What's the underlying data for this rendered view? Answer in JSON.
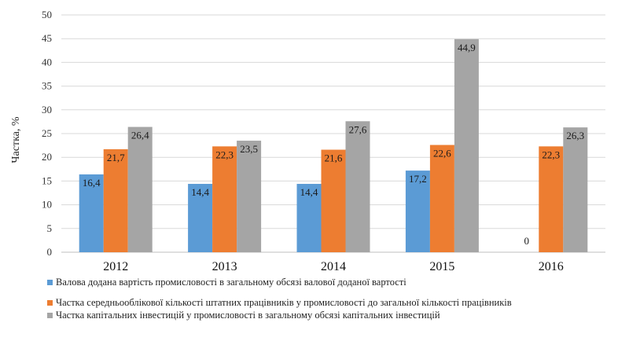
{
  "chart_data": {
    "type": "bar",
    "categories": [
      "2012",
      "2013",
      "2014",
      "2015",
      "2016"
    ],
    "series": [
      {
        "name": "Валова додана вартість промисловості в загальному обсязі валової доданої вартості",
        "values": [
          16.4,
          14.4,
          14.4,
          17.2,
          0
        ],
        "labels": [
          "16,4",
          "14,4",
          "14,4",
          "17,2",
          "0"
        ],
        "color": "#5b9bd5"
      },
      {
        "name": "Частка середньооблікової кількості штатних працівників у промисловості до загальної кількості працівників",
        "values": [
          21.7,
          22.3,
          21.6,
          22.6,
          22.3
        ],
        "labels": [
          "21,7",
          "22,3",
          "21,6",
          "22,6",
          "22,3"
        ],
        "color": "#ed7d31"
      },
      {
        "name": "Частка капітальних інвестицій у промисловості в загальному обсязі капітальних інвестицій",
        "values": [
          26.4,
          23.5,
          27.6,
          44.9,
          26.3
        ],
        "labels": [
          "26,4",
          "23,5",
          "27,6",
          "44,9",
          "26,3"
        ],
        "color": "#a5a5a5"
      }
    ],
    "ylabel": "Частка, %",
    "ylim": [
      0,
      50
    ],
    "yticks": [
      0,
      5,
      10,
      15,
      20,
      25,
      30,
      35,
      40,
      45,
      50
    ],
    "grid": true,
    "legend": "bottom"
  }
}
